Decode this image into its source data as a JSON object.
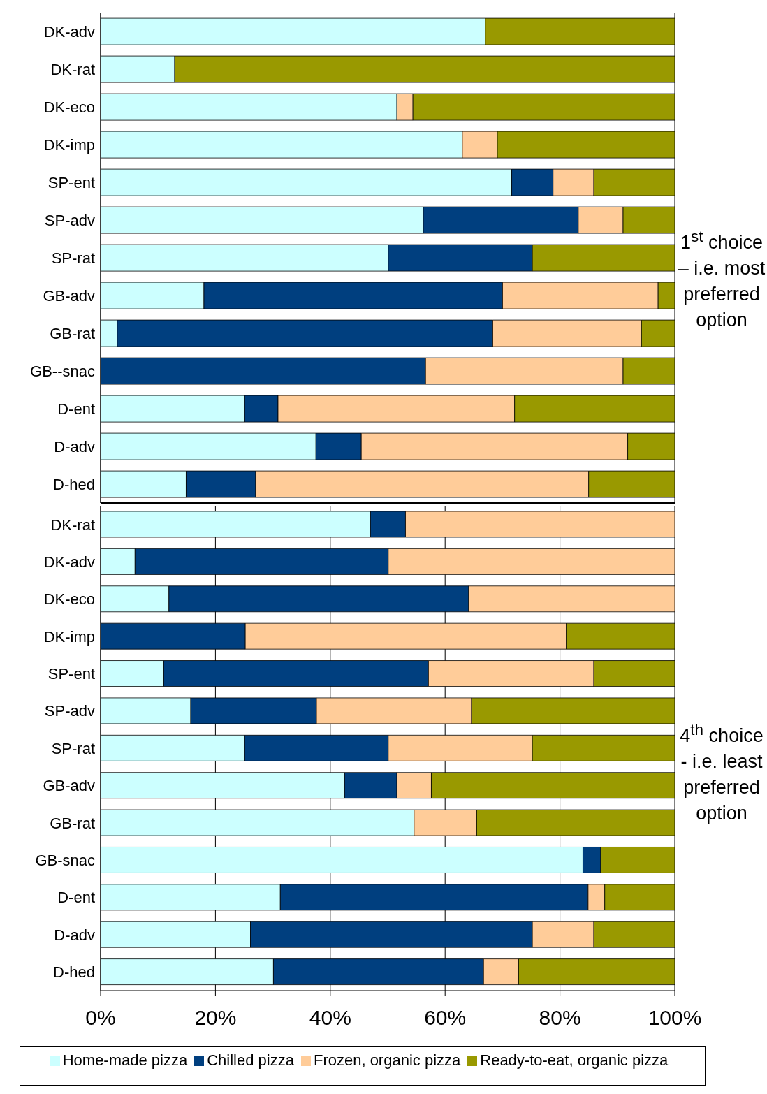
{
  "chart_data": [
    {
      "type": "bar",
      "orientation": "horizontal",
      "stacked": true,
      "categories": [
        "DK-adv",
        "DK-rat",
        "DK-eco",
        "DK-imp",
        "SP-ent",
        "SP-adv",
        "SP-rat",
        "GB-adv",
        "GB-rat",
        "GB--snac",
        "D-ent",
        "D-adv",
        "D-hed"
      ],
      "series": [
        {
          "color": "#ccffff",
          "values": [
            67.0,
            12.9,
            51.6,
            63.0,
            71.6,
            56.2,
            50.1,
            18.0,
            2.9,
            0,
            25.1,
            37.5,
            14.9
          ]
        },
        {
          "color": "#003f7f",
          "values": [
            0,
            0,
            0,
            0,
            7.2,
            27.0,
            25.1,
            52.0,
            65.4,
            56.6,
            5.8,
            7.9,
            12.1
          ]
        },
        {
          "color": "#ffcc99",
          "values": [
            0,
            0,
            2.8,
            6.1,
            7.1,
            7.8,
            0,
            27.1,
            25.9,
            34.4,
            41.2,
            46.4,
            58.0
          ]
        },
        {
          "color": "#999900",
          "values": [
            33.0,
            87.1,
            45.6,
            30.9,
            14.1,
            9.0,
            24.8,
            2.9,
            5.8,
            9.0,
            27.9,
            8.2,
            15.0
          ]
        }
      ],
      "xlim": [
        0,
        100
      ],
      "xticks": [
        {
          "value": 0,
          "label": null
        },
        {
          "value": 20,
          "label": null
        },
        {
          "value": 40,
          "label": null
        },
        {
          "value": 60,
          "label": null
        },
        {
          "value": 80,
          "label": null
        },
        {
          "value": 100,
          "label": null
        }
      ],
      "tick_labels": "y",
      "grid": "x",
      "annotations": [
        "1$^{st}$ choice – i.e. most preferred option"
      ]
    },
    {
      "type": "bar",
      "orientation": "horizontal",
      "stacked": true,
      "categories": [
        "DK-rat",
        "DK-adv",
        "DK-eco",
        "DK-imp",
        "SP-ent",
        "SP-adv",
        "SP-rat",
        "GB-adv",
        "GB-rat",
        "GB-snac",
        "D-ent",
        "D-adv",
        "D-hed"
      ],
      "series": [
        {
          "name": "Home-made pizza",
          "color": "#ccffff",
          "values": [
            47.0,
            6.0,
            11.9,
            0,
            11.0,
            15.7,
            25.1,
            42.5,
            54.6,
            84.0,
            31.3,
            26.1,
            30.1
          ]
        },
        {
          "name": "Chilled pizza",
          "color": "#003f7f",
          "values": [
            6.1,
            44.1,
            52.2,
            25.2,
            46.1,
            21.9,
            25.0,
            9.1,
            0,
            3.1,
            53.6,
            49.1,
            36.6
          ]
        },
        {
          "name": "Frozen, organic pizza",
          "color": "#ffcc99",
          "values": [
            46.9,
            49.9,
            35.9,
            55.9,
            28.8,
            27.0,
            25.1,
            6.0,
            10.9,
            0,
            2.9,
            10.7,
            6.1
          ]
        },
        {
          "name": "Ready-to-eat, organic pizza",
          "color": "#999900",
          "values": [
            0,
            0,
            0,
            18.9,
            14.1,
            35.4,
            24.8,
            42.4,
            34.5,
            12.9,
            12.2,
            14.1,
            27.2
          ]
        }
      ],
      "xlim": [
        0,
        100
      ],
      "xticks": [
        {
          "value": 0,
          "label": "0%"
        },
        {
          "value": 20,
          "label": "20%"
        },
        {
          "value": 40,
          "label": "40%"
        },
        {
          "value": 60,
          "label": "60%"
        },
        {
          "value": 80,
          "label": "80%"
        },
        {
          "value": 100,
          "label": "100%"
        }
      ],
      "grid": "x",
      "legend": "bottom",
      "annotations": [
        "4$^{th}$ choice - i.e. least preferred option"
      ]
    }
  ]
}
